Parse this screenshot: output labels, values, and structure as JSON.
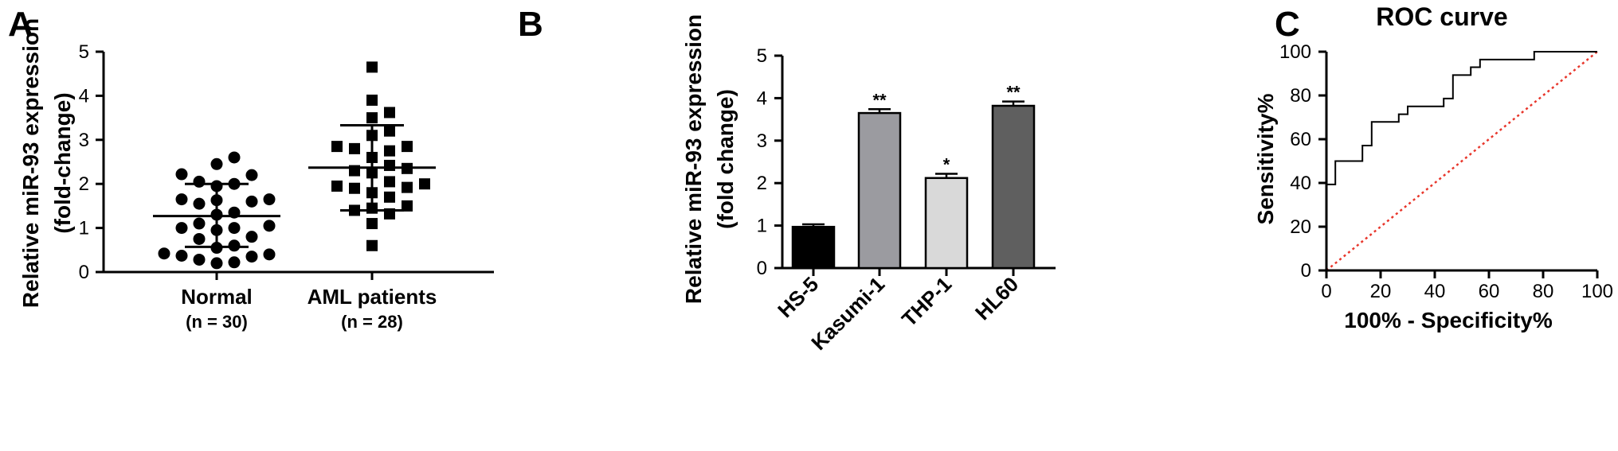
{
  "chart_data": [
    {
      "panel": "A",
      "type": "scatter",
      "ylabel": "Relative miR-93 expression",
      "ylabel2": "(fold-change)",
      "ylim": [
        0,
        5
      ],
      "yticks": [
        "0",
        "1",
        "2",
        "3",
        "4",
        "5"
      ],
      "groups": [
        {
          "name": "Normal",
          "n_label": "(n = 30)",
          "marker": "circle",
          "mean": 1.27,
          "upper": 2.0,
          "lower": 0.57,
          "values": [
            2.6,
            2.45,
            2.22,
            2.2,
            2.05,
            2.0,
            1.95,
            1.65,
            1.65,
            1.63,
            1.6,
            1.55,
            1.35,
            1.3,
            1.1,
            1.05,
            1.0,
            1.0,
            0.95,
            0.8,
            0.75,
            0.6,
            0.55,
            0.42,
            0.4,
            0.37,
            0.35,
            0.28,
            0.22,
            0.2
          ]
        },
        {
          "name": "AML patients",
          "n_label": "(n = 28)",
          "marker": "square",
          "mean": 2.37,
          "upper": 3.33,
          "lower": 1.4,
          "values": [
            4.65,
            3.9,
            3.62,
            3.5,
            3.2,
            3.1,
            2.85,
            2.85,
            2.8,
            2.75,
            2.6,
            2.42,
            2.35,
            2.3,
            2.25,
            2.05,
            2.0,
            1.95,
            1.92,
            1.9,
            1.8,
            1.7,
            1.5,
            1.45,
            1.4,
            1.32,
            1.1,
            0.6
          ]
        }
      ]
    },
    {
      "panel": "B",
      "type": "bar",
      "ylabel": "Relative miR-93 expression",
      "ylabel2": "(fold change)",
      "ylim": [
        0,
        5
      ],
      "yticks": [
        "0",
        "1",
        "2",
        "3",
        "4",
        "5"
      ],
      "categories": [
        "HS-5",
        "Kasumi-1",
        "THP-1",
        "HL60"
      ],
      "values": [
        0.97,
        3.65,
        2.12,
        3.82
      ],
      "errors": [
        0.06,
        0.09,
        0.1,
        0.1
      ],
      "significance": [
        "",
        "**",
        "*",
        "**"
      ],
      "colors": [
        "#000000",
        "#9b9ba0",
        "#d9d9d9",
        "#5f5f5f"
      ]
    },
    {
      "panel": "C",
      "type": "line",
      "title": "ROC curve",
      "xlabel": "100% - Specificity%",
      "ylabel": "Sensitivity%",
      "xlim": [
        0,
        100
      ],
      "ylim": [
        0,
        100
      ],
      "xticks": [
        "0",
        "20",
        "40",
        "60",
        "80",
        "100"
      ],
      "yticks": [
        "0",
        "20",
        "40",
        "60",
        "80",
        "100"
      ],
      "roc": {
        "x": [
          0,
          0,
          3.3,
          3.3,
          13.3,
          13.3,
          16.7,
          16.7,
          26.7,
          26.7,
          30,
          30,
          33.3,
          33.3,
          43.3,
          43.3,
          46.7,
          46.7,
          53.3,
          53.3,
          56.7,
          56.7,
          60,
          60,
          76.7,
          76.7,
          100
        ],
        "y": [
          0,
          39.3,
          39.3,
          50,
          50,
          57.1,
          57.1,
          67.9,
          67.9,
          71.4,
          71.4,
          75,
          75,
          75,
          75,
          78.6,
          78.6,
          89.3,
          89.3,
          92.9,
          92.9,
          96.4,
          96.4,
          96.4,
          96.4,
          100,
          100
        ]
      },
      "reference_line": {
        "x": [
          0,
          100
        ],
        "y": [
          0,
          100
        ],
        "color": "#e8362b",
        "style": "dotted"
      }
    }
  ]
}
